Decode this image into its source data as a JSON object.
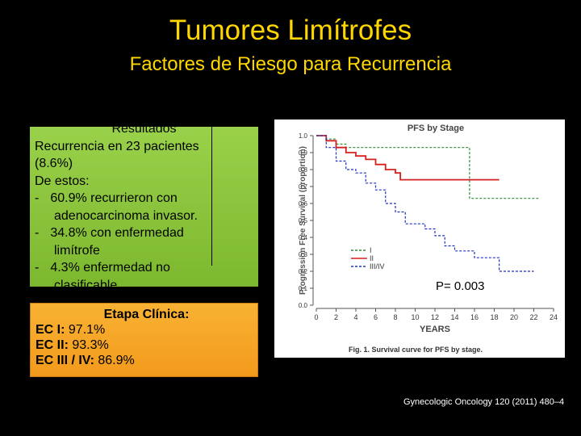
{
  "header": {
    "title": "Tumores Limítrofes",
    "subtitle": "Factores  de Riesgo para Recurrencia"
  },
  "results": {
    "heading": "Resultados",
    "lines": [
      "Recurrencia en 23 pacientes",
      "(8.6%)",
      "De estos:"
    ],
    "bullets": [
      [
        "60.9% recurrieron con",
        "adenocarcinoma invasor."
      ],
      [
        "34.8% con enfermedad",
        "limítrofe"
      ],
      [
        "4.3% enfermedad no",
        "clasificable"
      ]
    ],
    "bullet_mark": "-"
  },
  "stage": {
    "heading": "Etapa Clínica:",
    "rows": [
      {
        "label": "EC I:",
        "value": "97.1%"
      },
      {
        "label": "EC II:",
        "value": "93.3%"
      },
      {
        "label": "EC III / IV:",
        "value": "86.9%"
      }
    ]
  },
  "figure": {
    "type": "line",
    "title": "PFS by Stage",
    "y_label": "Progression Free Survival (proportion)",
    "x_label": "YEARS",
    "caption": "Fig. 1. Survival curve for PFS by stage.",
    "annotation": "P= 0.003",
    "xlim": [
      0,
      24
    ],
    "ylim": [
      0,
      1
    ],
    "xticks": [
      0,
      2,
      4,
      6,
      8,
      10,
      12,
      14,
      16,
      18,
      20,
      22,
      24
    ],
    "yticks": [
      {
        "value": 0,
        "label": "0.0"
      },
      0.1,
      0.2,
      0.3,
      0.4,
      0.5,
      0.6,
      0.7,
      0.8,
      0.9,
      {
        "value": 1,
        "label": "1.0"
      }
    ],
    "series": [
      {
        "name": "I",
        "color": "#2e8b3a",
        "dash": true,
        "x": [
          0,
          1,
          2,
          3,
          15.5,
          22.5
        ],
        "values": [
          1.0,
          0.98,
          0.95,
          0.93,
          0.63,
          0.63
        ]
      },
      {
        "name": "II",
        "color": "#d62020",
        "dash": false,
        "x": [
          0,
          1,
          2,
          3,
          4,
          5,
          6,
          7,
          8,
          8.5,
          18.5
        ],
        "values": [
          1.0,
          0.97,
          0.93,
          0.9,
          0.88,
          0.86,
          0.83,
          0.8,
          0.78,
          0.74,
          0.74
        ]
      },
      {
        "name": "III/IV",
        "color": "#2030c0",
        "dash": true,
        "x": [
          0,
          1,
          2,
          3,
          4,
          5,
          6,
          7,
          8,
          9,
          11,
          12,
          13,
          14,
          16,
          18.5,
          22
        ],
        "values": [
          1.0,
          0.93,
          0.85,
          0.8,
          0.78,
          0.72,
          0.68,
          0.6,
          0.55,
          0.48,
          0.45,
          0.41,
          0.35,
          0.32,
          0.28,
          0.2,
          0.2
        ]
      }
    ]
  },
  "citation": "Gynecologic Oncology 120 (2011) 480–4"
}
